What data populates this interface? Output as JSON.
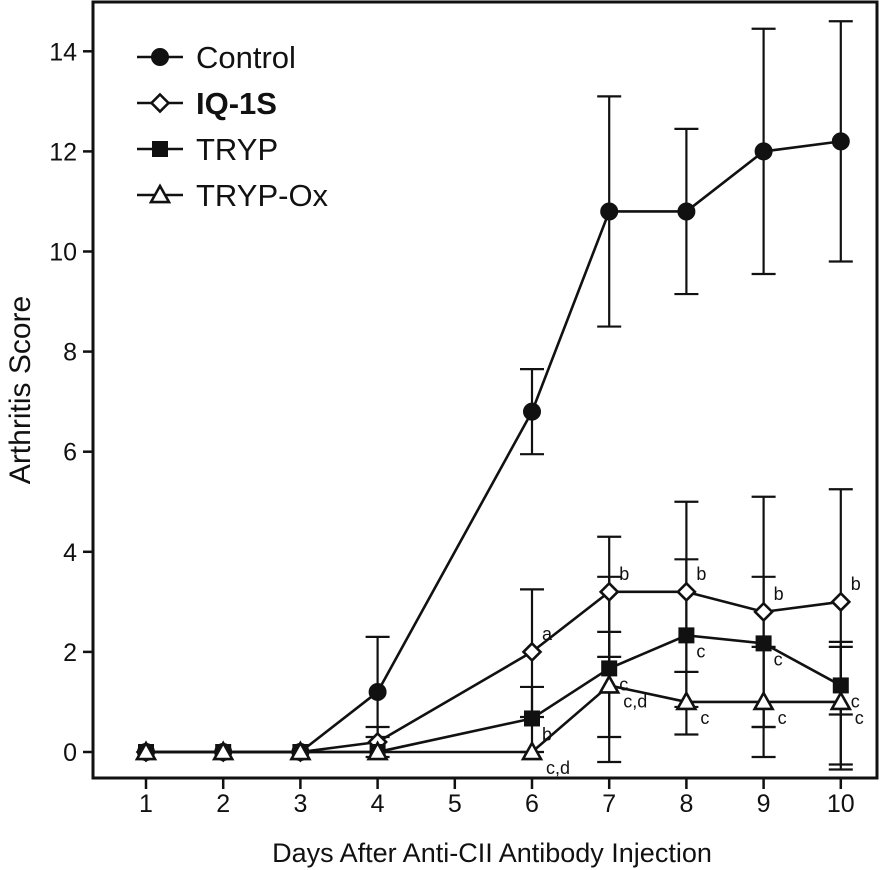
{
  "chart_data": {
    "type": "line",
    "title": "",
    "xlabel": "Days After Anti-CII Antibody Injection",
    "ylabel": "Arthritis Score",
    "categories": [
      "1",
      "2",
      "3",
      "4",
      "5",
      "6",
      "7",
      "8",
      "9",
      "10"
    ],
    "x_tick_positions": [
      1,
      2,
      3,
      4,
      5,
      6,
      7,
      8,
      9,
      10
    ],
    "ylim": [
      -0.5,
      14.75
    ],
    "yticks": [
      0,
      2,
      4,
      6,
      8,
      10,
      12,
      14
    ],
    "legend_position": "top-left",
    "series": [
      {
        "name": "Control",
        "marker": "filled-circle",
        "bold": false,
        "x": [
          1,
          2,
          3,
          4,
          6,
          7,
          8,
          9,
          10
        ],
        "values": [
          0,
          0,
          0,
          1.2,
          6.8,
          10.8,
          10.8,
          12.0,
          12.2
        ],
        "err_low": [
          0,
          0,
          0,
          0.3,
          5.95,
          8.5,
          9.15,
          9.55,
          9.8
        ],
        "err_high": [
          0,
          0,
          0,
          2.3,
          7.65,
          13.1,
          12.45,
          14.45,
          14.6
        ],
        "annotations": [
          "",
          "",
          "",
          "",
          "",
          "",
          "",
          "",
          ""
        ]
      },
      {
        "name": "IQ-1S",
        "marker": "open-diamond",
        "bold": true,
        "x": [
          1,
          2,
          3,
          4,
          6,
          7,
          8,
          9,
          10
        ],
        "values": [
          0,
          0,
          0,
          0.2,
          2.0,
          3.2,
          3.2,
          2.8,
          3.0
        ],
        "err_low": [
          0,
          0,
          0,
          -0.1,
          0.7,
          1.9,
          1.6,
          0.5,
          0.75
        ],
        "err_high": [
          0,
          0,
          0,
          0.5,
          3.25,
          4.3,
          5.0,
          5.1,
          5.25
        ],
        "annotations": [
          "",
          "",
          "",
          "",
          "a",
          "b",
          "b",
          "b",
          "b"
        ]
      },
      {
        "name": "TRYP",
        "marker": "filled-square",
        "bold": false,
        "x": [
          1,
          2,
          3,
          4,
          6,
          7,
          8,
          9,
          10
        ],
        "values": [
          0,
          0,
          0,
          0,
          0.67,
          1.67,
          2.33,
          2.17,
          1.33
        ],
        "err_low": [
          0,
          0,
          0,
          0,
          0,
          0.3,
          0.9,
          0.5,
          -0.25
        ],
        "err_high": [
          0,
          0,
          0,
          0,
          1.3,
          3.5,
          3.85,
          3.5,
          2.1
        ],
        "annotations": [
          "",
          "",
          "",
          "",
          "b",
          "c",
          "c",
          "c",
          "c"
        ]
      },
      {
        "name": "TRYP-Ox",
        "marker": "open-triangle",
        "bold": false,
        "x": [
          1,
          2,
          3,
          4,
          6,
          7,
          8,
          9,
          10
        ],
        "values": [
          0,
          0,
          0,
          0,
          0,
          1.33,
          1.0,
          1.0,
          1.0
        ],
        "err_low": [
          0,
          0,
          0,
          0,
          0,
          -0.2,
          0.35,
          -0.1,
          -0.35
        ],
        "err_high": [
          0,
          0,
          0,
          0,
          0,
          2.4,
          1.6,
          2.1,
          2.2
        ],
        "annotations": [
          "",
          "",
          "",
          "",
          "c,d",
          "c,d",
          "c",
          "c",
          "c"
        ]
      }
    ]
  }
}
